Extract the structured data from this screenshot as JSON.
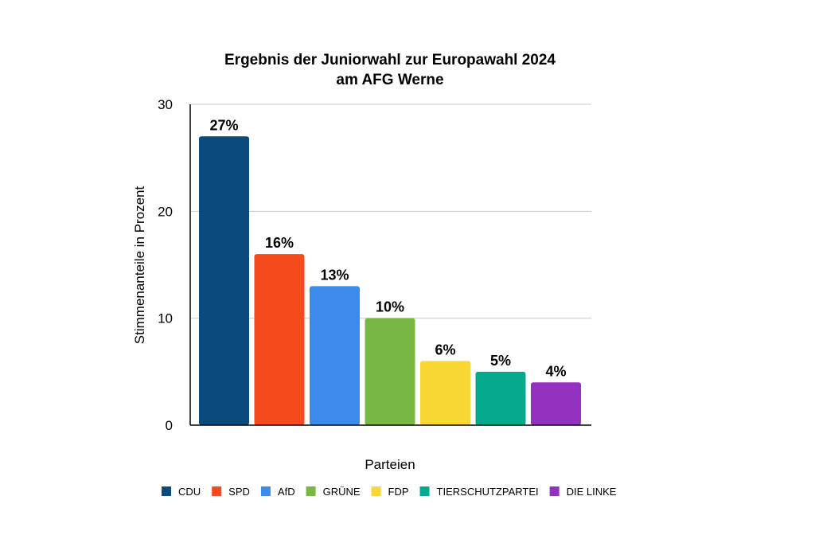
{
  "chart_data": {
    "type": "bar",
    "title": [
      "Ergebnis der Juniorwahl zur Europawahl 2024",
      "am AFG Werne"
    ],
    "xlabel": "Parteien",
    "ylabel": "Stimmenanteile in Prozent",
    "ylim": [
      0,
      30
    ],
    "yticks": [
      0,
      10,
      20,
      30
    ],
    "grid": true,
    "legend_position": "bottom",
    "categories": [
      "CDU",
      "SPD",
      "AfD",
      "GRÜNE",
      "FDP",
      "TIERSCHUTZPARTEI",
      "DIE LINKE"
    ],
    "values": [
      27,
      16,
      13,
      10,
      6,
      5,
      4
    ],
    "data_labels": [
      "27%",
      "16%",
      "13%",
      "10%",
      "6%",
      "5%",
      "4%"
    ],
    "colors": [
      "#0b4a7c",
      "#f44a1c",
      "#3b8beb",
      "#79b843",
      "#f9d734",
      "#05a98c",
      "#9432c0"
    ]
  }
}
